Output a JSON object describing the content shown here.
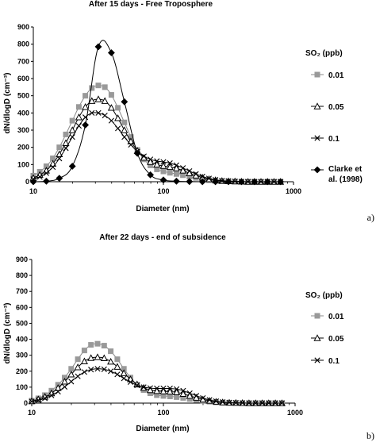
{
  "panels": {
    "a": "a)",
    "b": "b)"
  },
  "chart_data": [
    {
      "type": "line",
      "title": "After 15 days - Free Troposphere",
      "xlabel": "Diameter (nm)",
      "ylabel": "dN/dlogD (cm⁻³)",
      "xscale": "log",
      "xlim": [
        10,
        1000
      ],
      "ylim": [
        0,
        900
      ],
      "yticks": [
        0,
        100,
        200,
        300,
        400,
        500,
        600,
        700,
        800,
        900
      ],
      "xticks": [
        10,
        100,
        1000
      ],
      "grid": false,
      "legend_title": "SO₂ (ppb)",
      "legend_placement": "right",
      "x": [
        10,
        11.22,
        12.59,
        14.13,
        15.85,
        17.78,
        19.95,
        22.39,
        25.12,
        28.18,
        31.62,
        35.48,
        39.81,
        44.67,
        50.12,
        56.23,
        63.1,
        70.79,
        79.43,
        89.13,
        100,
        112.2,
        125.9,
        141.3,
        158.5,
        177.8,
        199.5,
        223.9,
        251.2,
        281.8,
        316.2,
        354.8,
        398.1,
        446.7,
        501.2,
        562.3,
        631,
        707.9,
        794.3
      ],
      "series": [
        {
          "name": "0.01",
          "marker": "square",
          "color": "#999999",
          "values": [
            35,
            58,
            90,
            136,
            200,
            275,
            355,
            435,
            500,
            545,
            560,
            550,
            505,
            430,
            345,
            260,
            185,
            130,
            95,
            72,
            60,
            52,
            45,
            38,
            30,
            22,
            15,
            9,
            5,
            3,
            2,
            1,
            0,
            0,
            0,
            0,
            0,
            0,
            0
          ]
        },
        {
          "name": "0.05",
          "marker": "triangle",
          "color": "#000000",
          "values": [
            22,
            40,
            65,
            105,
            160,
            225,
            300,
            375,
            435,
            470,
            480,
            470,
            430,
            370,
            300,
            235,
            180,
            140,
            115,
            100,
            92,
            86,
            78,
            65,
            50,
            36,
            24,
            15,
            9,
            5,
            3,
            2,
            1,
            0,
            0,
            0,
            0,
            0,
            0
          ]
        },
        {
          "name": "0.1",
          "marker": "cross",
          "color": "#000000",
          "values": [
            15,
            28,
            50,
            85,
            135,
            195,
            260,
            325,
            375,
            400,
            400,
            385,
            355,
            310,
            260,
            215,
            175,
            148,
            130,
            120,
            115,
            108,
            96,
            80,
            62,
            45,
            30,
            19,
            11,
            6,
            4,
            2,
            1,
            0,
            0,
            0,
            0,
            0,
            0
          ]
        },
        {
          "name": "Clarke et al. (1998)",
          "marker": "diamond",
          "color": "#000000",
          "x": [
            10,
            12.59,
            15.85,
            19.95,
            25.12,
            31.62,
            39.81,
            50.12,
            63.1,
            79.43,
            100,
            125.9,
            158.5,
            199.5,
            251.2,
            316.2,
            398.1,
            501.2,
            631,
            794.3
          ],
          "values": [
            0,
            3,
            20,
            90,
            330,
            785,
            750,
            465,
            165,
            40,
            10,
            3,
            1,
            0,
            0,
            0,
            0,
            0,
            0,
            0
          ]
        }
      ]
    },
    {
      "type": "line",
      "title": "After 22 days - end of subsidence",
      "xlabel": "Diameter (nm)",
      "ylabel": "dN/dlogD (cm⁻³)",
      "xscale": "log",
      "xlim": [
        10,
        1000
      ],
      "ylim": [
        0,
        900
      ],
      "yticks": [
        0,
        100,
        200,
        300,
        400,
        500,
        600,
        700,
        800,
        900
      ],
      "xticks": [
        10,
        100,
        1000
      ],
      "grid": false,
      "legend_title": "SO₂ (ppb)",
      "legend_placement": "right",
      "x": [
        10,
        11.22,
        12.59,
        14.13,
        15.85,
        17.78,
        19.95,
        22.39,
        25.12,
        28.18,
        31.62,
        35.48,
        39.81,
        44.67,
        50.12,
        56.23,
        63.1,
        70.79,
        79.43,
        89.13,
        100,
        112.2,
        125.9,
        141.3,
        158.5,
        177.8,
        199.5,
        223.9,
        251.2,
        281.8,
        316.2,
        354.8,
        398.1,
        446.7,
        501.2,
        562.3,
        631,
        707.9,
        794.3
      ],
      "series": [
        {
          "name": "0.01",
          "marker": "square",
          "color": "#999999",
          "values": [
            15,
            30,
            50,
            78,
            115,
            160,
            215,
            275,
            330,
            365,
            372,
            360,
            325,
            275,
            215,
            160,
            115,
            82,
            62,
            50,
            45,
            42,
            38,
            33,
            26,
            20,
            14,
            9,
            5,
            3,
            2,
            1,
            0,
            0,
            0,
            0,
            0,
            0,
            0
          ]
        },
        {
          "name": "0.05",
          "marker": "triangle",
          "color": "#000000",
          "values": [
            12,
            24,
            40,
            62,
            95,
            135,
            180,
            225,
            262,
            283,
            288,
            282,
            260,
            228,
            188,
            150,
            118,
            96,
            82,
            76,
            74,
            72,
            68,
            58,
            46,
            34,
            23,
            15,
            9,
            5,
            3,
            2,
            1,
            0,
            0,
            0,
            0,
            0,
            0
          ]
        },
        {
          "name": "0.1",
          "marker": "cross",
          "color": "#000000",
          "values": [
            10,
            18,
            30,
            48,
            72,
            102,
            135,
            168,
            195,
            210,
            215,
            212,
            200,
            180,
            155,
            132,
            112,
            100,
            94,
            92,
            92,
            92,
            88,
            78,
            62,
            46,
            32,
            20,
            12,
            7,
            4,
            2,
            1,
            0,
            0,
            0,
            0,
            0,
            0
          ]
        }
      ]
    }
  ]
}
